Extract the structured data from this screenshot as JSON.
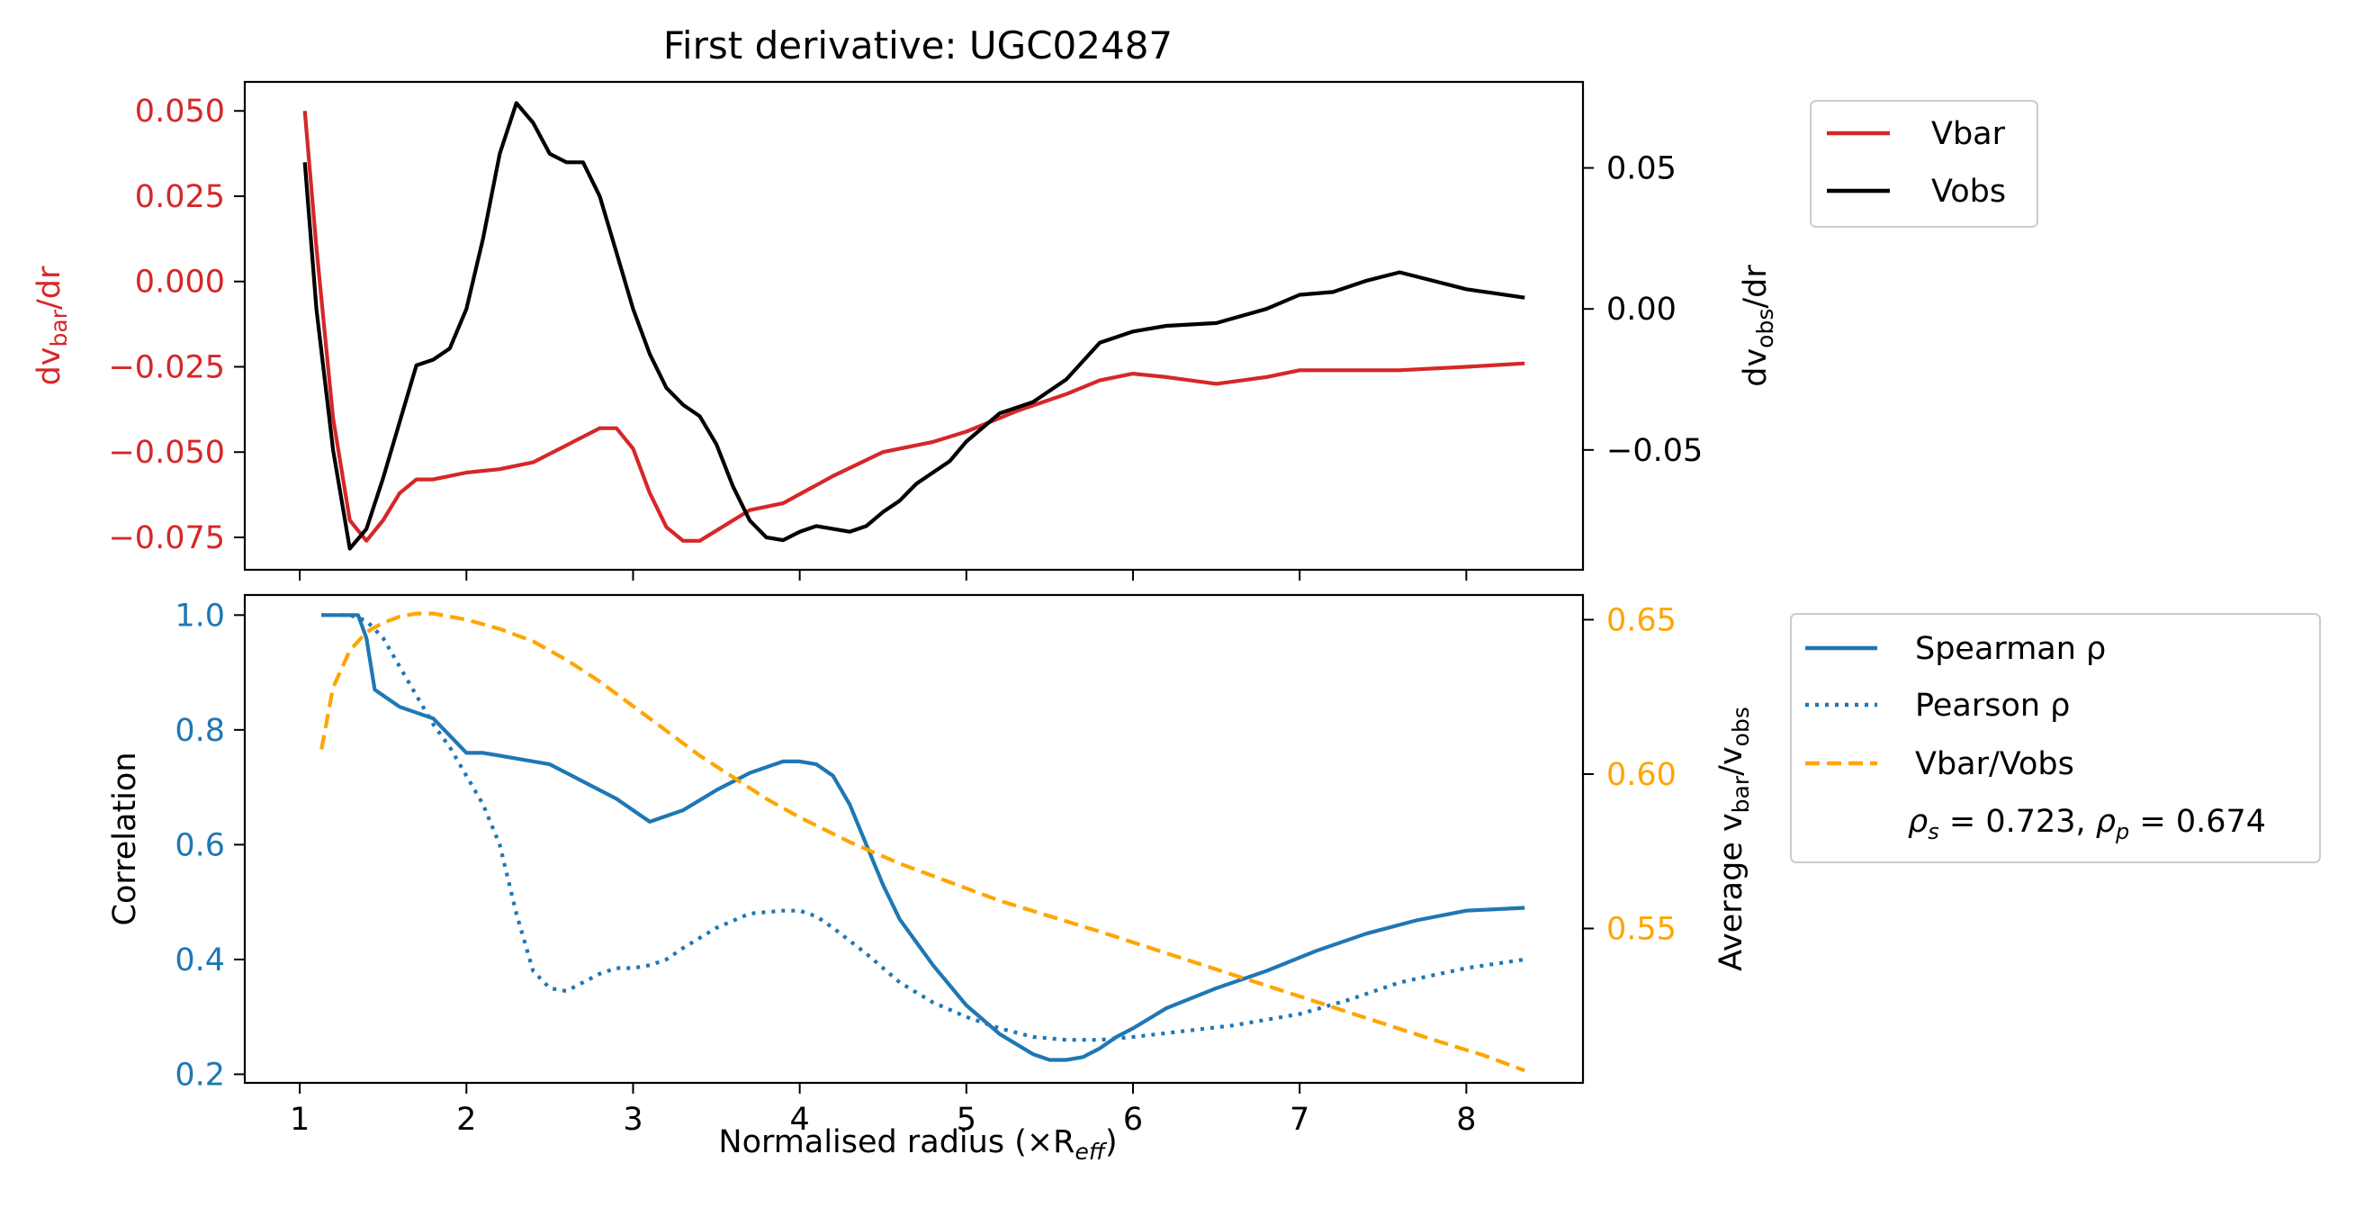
{
  "colors": {
    "vbar": "#d62728",
    "vobs": "#000000",
    "spearman": "#1f77b4",
    "pearson": "#1f77b4",
    "ratio": "#ffa500"
  },
  "chart_data": [
    {
      "type": "line",
      "title": "First derivative: UGC02487",
      "xlim": [
        0.67,
        8.7
      ],
      "y_left": {
        "ylim": [
          -0.0845,
          0.0585
        ],
        "ticks": [
          0.05,
          0.025,
          0.0,
          -0.025,
          -0.05,
          -0.075
        ],
        "tick_labels": [
          "0.050",
          "0.025",
          "0.000",
          "−0.025",
          "−0.050",
          "−0.075"
        ]
      },
      "y_right": {
        "ylim": [
          -0.0925,
          0.0805
        ],
        "ticks": [
          0.05,
          0.0,
          -0.05
        ],
        "tick_labels": [
          "0.05",
          "0.00",
          "−0.05"
        ]
      },
      "x_ticks": [
        1,
        2,
        3,
        4,
        5,
        6,
        7,
        8
      ],
      "legend": {
        "placement": "outside-top-right",
        "entries": [
          "Vbar",
          "Vobs"
        ]
      },
      "series": [
        {
          "name": "Vbar",
          "axis": "left",
          "x": [
            1.03,
            1.1,
            1.2,
            1.3,
            1.4,
            1.5,
            1.6,
            1.7,
            1.8,
            1.9,
            2.0,
            2.2,
            2.4,
            2.6,
            2.8,
            2.9,
            3.0,
            3.1,
            3.2,
            3.3,
            3.4,
            3.5,
            3.7,
            3.9,
            4.2,
            4.5,
            4.8,
            5.0,
            5.3,
            5.6,
            5.8,
            6.0,
            6.2,
            6.5,
            6.8,
            7.0,
            7.3,
            7.6,
            8.0,
            8.35
          ],
          "y": [
            0.05,
            0.01,
            -0.04,
            -0.07,
            -0.076,
            -0.07,
            -0.062,
            -0.058,
            -0.058,
            -0.057,
            -0.056,
            -0.055,
            -0.053,
            -0.048,
            -0.043,
            -0.043,
            -0.049,
            -0.062,
            -0.072,
            -0.076,
            -0.076,
            -0.073,
            -0.067,
            -0.065,
            -0.057,
            -0.05,
            -0.047,
            -0.044,
            -0.038,
            -0.033,
            -0.029,
            -0.027,
            -0.028,
            -0.03,
            -0.028,
            -0.026,
            -0.026,
            -0.026,
            -0.025,
            -0.024
          ]
        },
        {
          "name": "Vobs",
          "axis": "right",
          "x": [
            1.03,
            1.1,
            1.2,
            1.3,
            1.4,
            1.5,
            1.6,
            1.7,
            1.8,
            1.9,
            2.0,
            2.1,
            2.2,
            2.3,
            2.4,
            2.5,
            2.6,
            2.7,
            2.8,
            2.9,
            3.0,
            3.1,
            3.2,
            3.3,
            3.4,
            3.5,
            3.6,
            3.7,
            3.8,
            3.9,
            4.0,
            4.1,
            4.2,
            4.3,
            4.4,
            4.5,
            4.6,
            4.7,
            4.8,
            4.9,
            5.0,
            5.2,
            5.4,
            5.6,
            5.8,
            6.0,
            6.2,
            6.5,
            6.8,
            7.0,
            7.2,
            7.4,
            7.6,
            7.8,
            8.0,
            8.35
          ],
          "y": [
            0.052,
            0.0,
            -0.05,
            -0.085,
            -0.078,
            -0.06,
            -0.04,
            -0.02,
            -0.018,
            -0.014,
            0.0,
            0.025,
            0.055,
            0.073,
            0.066,
            0.055,
            0.052,
            0.052,
            0.04,
            0.02,
            0.0,
            -0.016,
            -0.028,
            -0.034,
            -0.038,
            -0.048,
            -0.063,
            -0.075,
            -0.081,
            -0.082,
            -0.079,
            -0.077,
            -0.078,
            -0.079,
            -0.077,
            -0.072,
            -0.068,
            -0.062,
            -0.058,
            -0.054,
            -0.047,
            -0.037,
            -0.033,
            -0.025,
            -0.012,
            -0.008,
            -0.006,
            -0.005,
            0.0,
            0.005,
            0.006,
            0.01,
            0.013,
            0.01,
            0.007,
            0.004
          ]
        }
      ]
    },
    {
      "type": "line",
      "xlabel": "Normalised radius (×R",
      "xlabel_sub": "eff",
      "xlabel_end": ")",
      "xlim": [
        0.67,
        8.7
      ],
      "y_left": {
        "label": "Correlation",
        "ylim": [
          0.185,
          1.035
        ],
        "ticks": [
          1.0,
          0.8,
          0.6,
          0.4,
          0.2
        ],
        "tick_labels": [
          "1.0",
          "0.8",
          "0.6",
          "0.4",
          "0.2"
        ]
      },
      "y_right": {
        "label_prefix": "Average v",
        "label_sub1": "bar",
        "label_mid": "/v",
        "label_sub2": "obs",
        "ylim": [
          0.5,
          0.658
        ],
        "ticks": [
          0.65,
          0.6,
          0.55
        ],
        "tick_labels": [
          "0.65",
          "0.60",
          "0.55"
        ]
      },
      "x_ticks": [
        1,
        2,
        3,
        4,
        5,
        6,
        7,
        8
      ],
      "x_tick_labels": [
        "1",
        "2",
        "3",
        "4",
        "5",
        "6",
        "7",
        "8"
      ],
      "legend": {
        "placement": "outside-right",
        "entries": [
          "Spearman ρ",
          "Pearson ρ",
          "Vbar/Vobs"
        ],
        "stats": "ρs = 0.723, ρp = 0.674",
        "rho_s": "0.723",
        "rho_p": "0.674"
      },
      "series": [
        {
          "name": "Spearman ρ",
          "axis": "left",
          "style": "solid",
          "x": [
            1.13,
            1.2,
            1.3,
            1.35,
            1.4,
            1.45,
            1.5,
            1.6,
            1.7,
            1.8,
            1.9,
            2.0,
            2.1,
            2.2,
            2.3,
            2.5,
            2.7,
            2.9,
            3.0,
            3.1,
            3.2,
            3.3,
            3.5,
            3.7,
            3.9,
            4.0,
            4.1,
            4.2,
            4.3,
            4.4,
            4.5,
            4.6,
            4.8,
            5.0,
            5.2,
            5.4,
            5.5,
            5.6,
            5.7,
            5.8,
            5.9,
            6.0,
            6.2,
            6.5,
            6.8,
            7.1,
            7.4,
            7.7,
            8.0,
            8.35
          ],
          "y": [
            1.0,
            1.0,
            1.0,
            1.0,
            0.96,
            0.87,
            0.86,
            0.84,
            0.83,
            0.82,
            0.79,
            0.76,
            0.76,
            0.755,
            0.75,
            0.74,
            0.71,
            0.68,
            0.66,
            0.64,
            0.65,
            0.66,
            0.695,
            0.725,
            0.745,
            0.745,
            0.74,
            0.72,
            0.67,
            0.6,
            0.53,
            0.47,
            0.39,
            0.32,
            0.27,
            0.235,
            0.225,
            0.225,
            0.23,
            0.245,
            0.265,
            0.28,
            0.315,
            0.35,
            0.38,
            0.415,
            0.445,
            0.468,
            0.485,
            0.49
          ]
        },
        {
          "name": "Pearson ρ",
          "axis": "left",
          "style": "dotted",
          "x": [
            1.13,
            1.2,
            1.3,
            1.4,
            1.5,
            1.6,
            1.7,
            1.8,
            1.9,
            2.0,
            2.1,
            2.2,
            2.3,
            2.4,
            2.5,
            2.6,
            2.7,
            2.8,
            2.9,
            3.0,
            3.1,
            3.2,
            3.3,
            3.5,
            3.7,
            3.9,
            4.0,
            4.1,
            4.2,
            4.4,
            4.6,
            4.8,
            5.0,
            5.2,
            5.4,
            5.6,
            5.8,
            6.0,
            6.3,
            6.6,
            7.0,
            7.3,
            7.6,
            8.0,
            8.35
          ],
          "y": [
            1.0,
            1.0,
            1.0,
            0.99,
            0.96,
            0.91,
            0.86,
            0.81,
            0.77,
            0.72,
            0.67,
            0.6,
            0.48,
            0.38,
            0.35,
            0.345,
            0.36,
            0.375,
            0.385,
            0.385,
            0.39,
            0.4,
            0.42,
            0.455,
            0.48,
            0.485,
            0.485,
            0.475,
            0.455,
            0.41,
            0.36,
            0.325,
            0.3,
            0.28,
            0.265,
            0.26,
            0.26,
            0.265,
            0.275,
            0.285,
            0.305,
            0.33,
            0.36,
            0.385,
            0.4
          ]
        },
        {
          "name": "Vbar/Vobs",
          "axis": "right",
          "style": "dashed",
          "x": [
            1.13,
            1.2,
            1.3,
            1.4,
            1.5,
            1.6,
            1.7,
            1.8,
            2.0,
            2.2,
            2.4,
            2.6,
            2.8,
            3.0,
            3.2,
            3.4,
            3.6,
            3.8,
            4.0,
            4.3,
            4.6,
            4.9,
            5.2,
            5.5,
            5.8,
            6.2,
            6.6,
            7.0,
            7.4,
            7.8,
            8.1,
            8.35
          ],
          "y": [
            0.608,
            0.628,
            0.64,
            0.646,
            0.649,
            0.651,
            0.652,
            0.652,
            0.65,
            0.647,
            0.643,
            0.637,
            0.63,
            0.622,
            0.614,
            0.606,
            0.599,
            0.592,
            0.586,
            0.578,
            0.571,
            0.565,
            0.559,
            0.554,
            0.549,
            0.542,
            0.535,
            0.528,
            0.521,
            0.514,
            0.509,
            0.504
          ]
        }
      ]
    }
  ]
}
